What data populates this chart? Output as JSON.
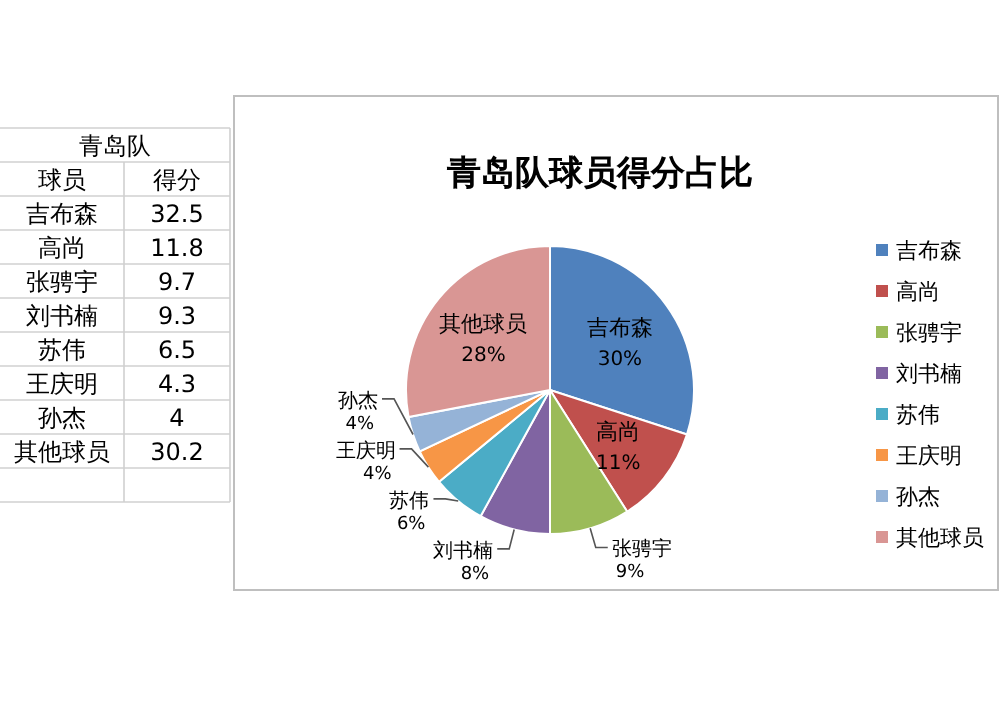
{
  "chart_data": {
    "type": "pie",
    "title": "青岛队球员得分占比",
    "categories": [
      "吉布森",
      "高尚",
      "张骋宇",
      "刘书楠",
      "苏伟",
      "王庆明",
      "孙杰",
      "其他球员"
    ],
    "values": [
      30,
      11,
      9,
      8,
      6,
      4,
      4,
      28
    ],
    "colors": [
      "#4f81bd",
      "#c0504d",
      "#9bbb59",
      "#8064a2",
      "#4bacc6",
      "#f79646",
      "#95b3d7",
      "#d99694"
    ],
    "value_labels": [
      "30%",
      "11%",
      "9%",
      "8%",
      "6%",
      "4%",
      "4%",
      "28%"
    ],
    "legend": "right",
    "annotations": [
      "青岛队",
      "球员",
      "得分",
      "32.5",
      "11.8",
      "9.7",
      "9.3",
      "6.5",
      "4.3",
      "4",
      "30.2"
    ]
  }
}
